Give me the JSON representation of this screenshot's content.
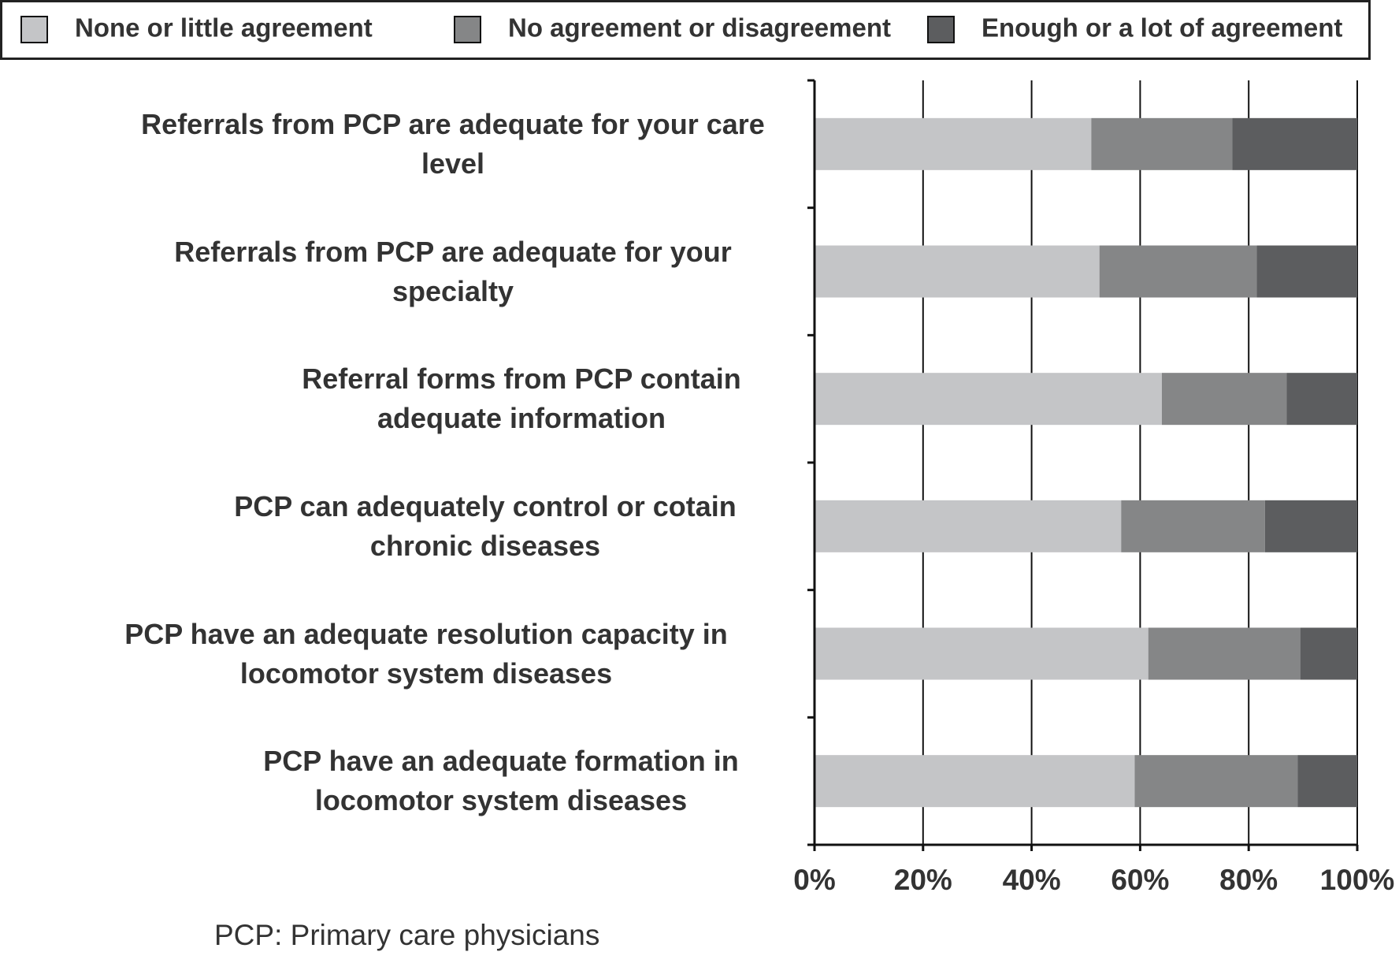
{
  "chart_data": {
    "type": "stacked-bar-horizontal",
    "categories": [
      "Referrals from PCP are adequate for your care level",
      "Referrals from PCP are adequate for your specialty",
      "Referral forms from PCP contain adequate information",
      "PCP can adequately control or cotain chronic diseases",
      "PCP have an adequate resolution capacity in locomotor system diseases",
      "PCP have an adequate formation in locomotor system diseases"
    ],
    "series": [
      {
        "name": "None or little agreement",
        "color": "#c4c5c7",
        "values": [
          51,
          52.5,
          64,
          56.5,
          61.5,
          59
        ]
      },
      {
        "name": "No agreement or disagreement",
        "color": "#858687",
        "values": [
          26,
          29,
          23,
          26.5,
          28,
          30
        ]
      },
      {
        "name": "Enough or a lot of agreement",
        "color": "#5c5d5f",
        "values": [
          23,
          18.5,
          13,
          17,
          10.5,
          11
        ]
      }
    ],
    "xlim": [
      0,
      100
    ],
    "xticks": [
      {
        "value": 0,
        "label": "0%"
      },
      {
        "value": 20,
        "label": "20%"
      },
      {
        "value": 40,
        "label": "40%"
      },
      {
        "value": 60,
        "label": "60%"
      },
      {
        "value": 80,
        "label": "80%"
      },
      {
        "value": 100,
        "label": "100%"
      }
    ],
    "grid": true,
    "footnote": "PCP: Primary care physicians"
  }
}
